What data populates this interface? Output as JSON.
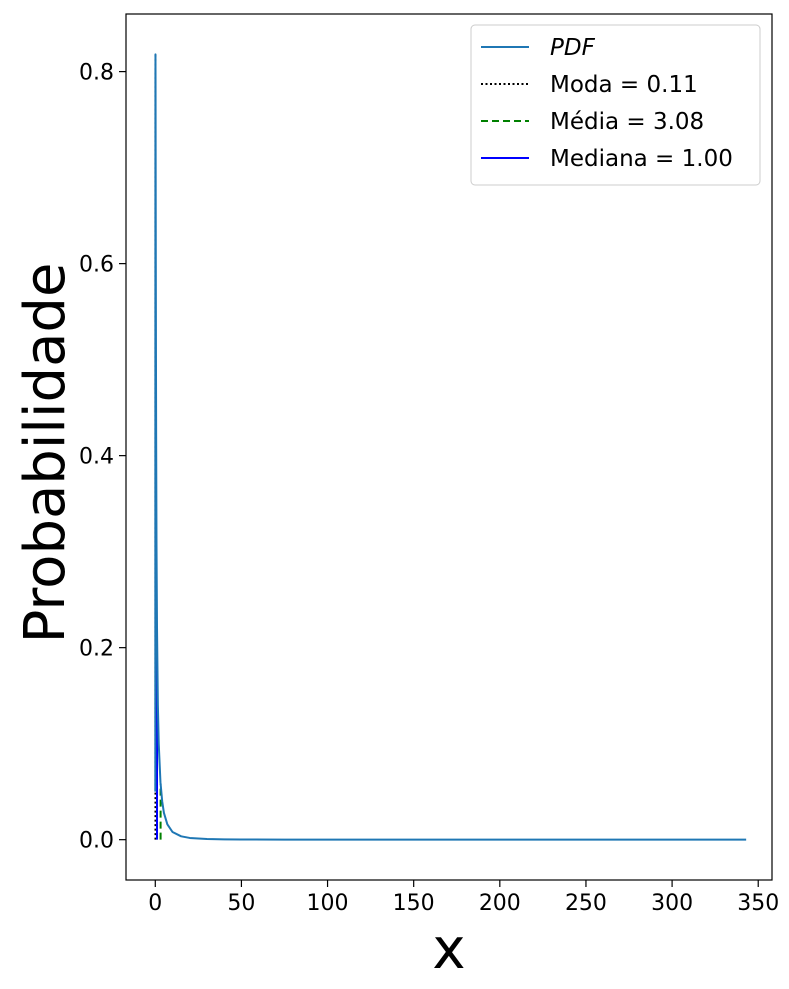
{
  "chart_data": {
    "type": "line",
    "xlabel": "x",
    "ylabel": "Probabilidade",
    "xlim": [
      -17,
      358
    ],
    "ylim": [
      -0.042,
      0.86
    ],
    "x_ticks": [
      0,
      50,
      100,
      150,
      200,
      250,
      300,
      350
    ],
    "x_tick_labels": [
      "0",
      "50",
      "100",
      "150",
      "200",
      "250",
      "300",
      "350"
    ],
    "y_ticks": [
      0.0,
      0.2,
      0.4,
      0.6,
      0.8
    ],
    "y_tick_labels": [
      "0.0",
      "0.2",
      "0.4",
      "0.6",
      "0.8"
    ],
    "grid": false,
    "legend_position": "top-right",
    "series": [
      {
        "name": "PDF",
        "style": "solid",
        "color": "#1f77b4",
        "x": [
          0.01,
          0.03,
          0.06,
          0.08,
          0.11,
          0.15,
          0.2,
          0.3,
          0.4,
          0.5,
          0.7,
          1.0,
          1.5,
          2.0,
          3.0,
          4.0,
          5.0,
          7.0,
          10.0,
          15.0,
          20.0,
          30.0,
          40.0,
          50.0,
          75.0,
          100.0,
          150.0,
          200.0,
          250.0,
          300.0,
          343.0
        ],
        "y": [
          0.05,
          0.45,
          0.7,
          0.79,
          0.818,
          0.79,
          0.72,
          0.6,
          0.5,
          0.42,
          0.31,
          0.22,
          0.14,
          0.1,
          0.06,
          0.04,
          0.028,
          0.016,
          0.008,
          0.0035,
          0.0018,
          0.0007,
          0.0003,
          0.00015,
          5e-05,
          2e-05,
          0.0,
          0.0,
          0.0,
          0.0,
          0.0
        ]
      }
    ],
    "reference_lines": [
      {
        "name": "Moda = 0.11",
        "x": 0.11,
        "y_top": 0.818,
        "style": "dotted",
        "color": "#000000"
      },
      {
        "name": "Média = 3.08",
        "x": 3.08,
        "y_top": 0.058,
        "style": "dashed",
        "color": "#008000"
      },
      {
        "name": "Mediana = 1.00",
        "x": 1.0,
        "y_top": 0.22,
        "style": "solid",
        "color": "#0000ff"
      }
    ],
    "legend": [
      {
        "label": "PDF",
        "italic": true,
        "style": "solid",
        "color": "#1f77b4"
      },
      {
        "label": "Moda = 0.11",
        "italic": false,
        "style": "dotted",
        "color": "#000000"
      },
      {
        "label": "Média = 3.08",
        "italic": false,
        "style": "dashed",
        "color": "#008000"
      },
      {
        "label": "Mediana = 1.00",
        "italic": false,
        "style": "solid",
        "color": "#0000ff"
      }
    ]
  }
}
